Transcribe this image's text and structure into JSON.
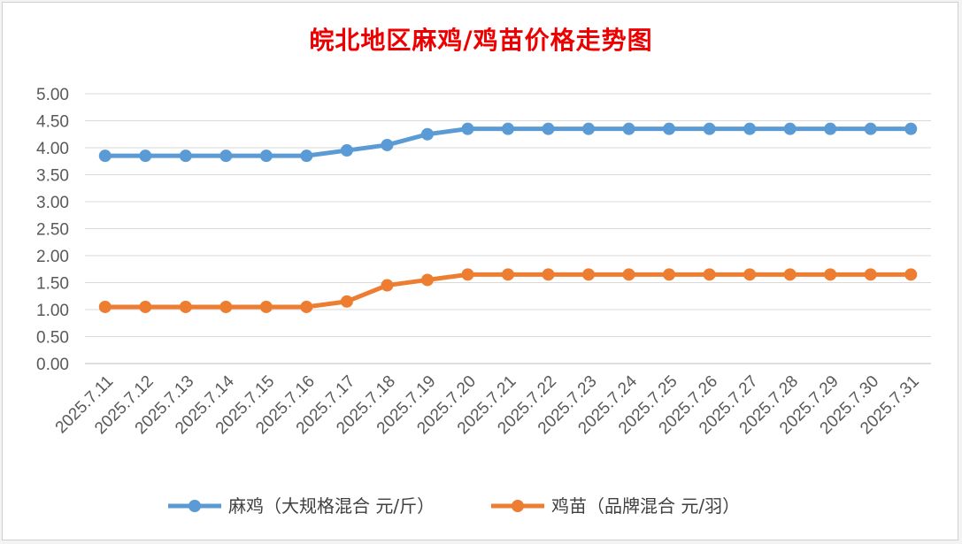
{
  "chart_data": {
    "type": "line",
    "title": "皖北地区麻鸡/鸡苗价格走势图",
    "categories": [
      "2025.7.11",
      "2025.7.12",
      "2025.7.13",
      "2025.7.14",
      "2025.7.15",
      "2025.7.16",
      "2025.7.17",
      "2025.7.18",
      "2025.7.19",
      "2025.7.20",
      "2025.7.21",
      "2025.7.22",
      "2025.7.23",
      "2025.7.24",
      "2025.7.25",
      "2025.7.26",
      "2025.7.27",
      "2025.7.28",
      "2025.7.29",
      "2025.7.30",
      "2025.7.31"
    ],
    "series": [
      {
        "name": "麻鸡（大规格混合 元/斤）",
        "color": "#5b9bd5",
        "values": [
          3.85,
          3.85,
          3.85,
          3.85,
          3.85,
          3.85,
          3.95,
          4.05,
          4.25,
          4.35,
          4.35,
          4.35,
          4.35,
          4.35,
          4.35,
          4.35,
          4.35,
          4.35,
          4.35,
          4.35,
          4.35
        ]
      },
      {
        "name": "鸡苗（品牌混合 元/羽）",
        "color": "#ed7d31",
        "values": [
          1.05,
          1.05,
          1.05,
          1.05,
          1.05,
          1.05,
          1.15,
          1.45,
          1.55,
          1.65,
          1.65,
          1.65,
          1.65,
          1.65,
          1.65,
          1.65,
          1.65,
          1.65,
          1.65,
          1.65,
          1.65
        ]
      }
    ],
    "y_ticks": [
      "0.00",
      "0.50",
      "1.00",
      "1.50",
      "2.00",
      "2.50",
      "3.00",
      "3.50",
      "4.00",
      "4.50",
      "5.00"
    ],
    "ylim": [
      0,
      5
    ],
    "grid": true,
    "legend_position": "bottom"
  }
}
